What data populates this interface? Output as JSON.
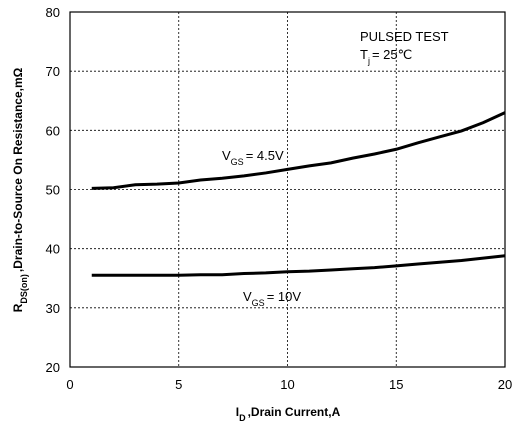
{
  "chart_data": {
    "type": "line",
    "x_label": {
      "main": "I",
      "sub": "D",
      "rest": ",Drain Current,A"
    },
    "y_label": {
      "main": "R",
      "sub": "DS(on)",
      "rest": ",Drain-to-Source On Resistance,mΩ"
    },
    "test_note": {
      "line1": "PULSED TEST",
      "main": "T",
      "sub": "j",
      "rest": "= 25℃"
    },
    "series": [
      {
        "color": "#000000",
        "label": {
          "main": "V",
          "sub": "GS",
          "rest": "= 4.5V"
        },
        "x": [
          1,
          2,
          3,
          4,
          5,
          6,
          7,
          8,
          9,
          10,
          11,
          12,
          13,
          14,
          15,
          16,
          17,
          18,
          19,
          20
        ],
        "values": [
          50.2,
          50.3,
          50.8,
          50.9,
          51.1,
          51.6,
          51.9,
          52.3,
          52.8,
          53.4,
          54.0,
          54.5,
          55.3,
          56.0,
          56.8,
          57.9,
          58.9,
          59.9,
          61.3,
          63.0
        ]
      },
      {
        "color": "#000000",
        "label": {
          "main": "V",
          "sub": "GS",
          "rest": "= 10V"
        },
        "x": [
          1,
          2,
          3,
          4,
          5,
          6,
          7,
          8,
          9,
          10,
          11,
          12,
          13,
          14,
          15,
          16,
          17,
          18,
          19,
          20
        ],
        "values": [
          35.5,
          35.5,
          35.5,
          35.5,
          35.5,
          35.6,
          35.6,
          35.8,
          35.9,
          36.1,
          36.2,
          36.4,
          36.6,
          36.8,
          37.1,
          37.4,
          37.7,
          38.0,
          38.4,
          38.8
        ]
      }
    ],
    "xlim": [
      0,
      20
    ],
    "xticks": [
      0,
      5,
      10,
      15,
      20
    ],
    "ylim": [
      20,
      80
    ],
    "yticks": [
      20,
      30,
      40,
      50,
      60,
      70,
      80
    ],
    "grid": true
  }
}
